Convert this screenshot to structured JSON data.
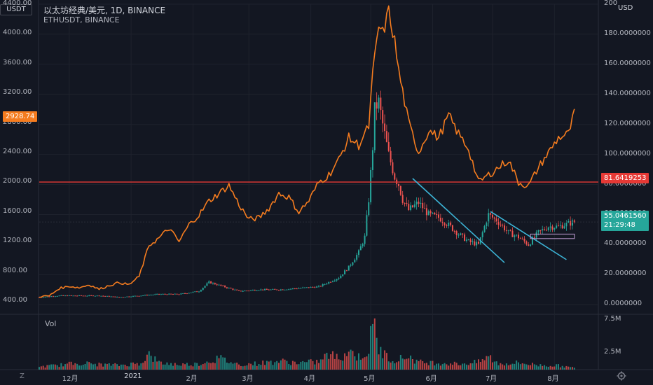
{
  "header": {
    "corner_label": "USDT",
    "title": "以太坊经典/美元, 1D, BINANCE",
    "subtitle": "ETHUSDT, BINANCE",
    "right_currency": "USD",
    "volume_label": "Vol"
  },
  "zoom_label": "Z",
  "settings_icon": "gear-icon",
  "colors": {
    "background": "#131722",
    "eth_line": "#f57c1f",
    "up": "#26a69a",
    "down": "#ef5350",
    "resistance": "#e53935",
    "trendline": "#3cb4d6",
    "current_tag": "#26a69a"
  },
  "chart_data": {
    "type": "line",
    "left_axis": {
      "unit": "USDT",
      "range": [
        250,
        4400
      ],
      "ticks": [
        "4400.00",
        "4000.00",
        "3600.00",
        "3200.00",
        "2800.00",
        "2400.00",
        "2000.00",
        "1600.00",
        "1200.00",
        "800.00",
        "400.00"
      ],
      "tick_values": [
        4400,
        4000,
        3600,
        3200,
        2800,
        2400,
        2000,
        1600,
        1200,
        800,
        400
      ],
      "current_tag": "2928.74",
      "current_value": 2928.74
    },
    "right_axis": {
      "unit": "USD",
      "range": [
        -5,
        200
      ],
      "ticks": [
        "200",
        "180.0000000",
        "160.0000000",
        "140.0000000",
        "120.0000000",
        "100.0000000",
        "80.0000000",
        "60.0000000",
        "40.0000000",
        "20.0000000",
        "0.0000000"
      ],
      "tick_values": [
        200,
        180,
        160,
        140,
        120,
        100,
        80,
        60,
        40,
        20,
        0
      ],
      "level_tag": "81.6419253",
      "level_value": 81.6419253,
      "current_tag": "55.0461560",
      "current_value": 55.046156,
      "countdown": "21:29:48"
    },
    "volume_axis": {
      "ticks": [
        "7.5M",
        "2.5M"
      ],
      "tick_values": [
        7.5,
        2.5
      ],
      "range": [
        0,
        8
      ]
    },
    "x_axis": {
      "range": [
        0,
        280
      ],
      "labels": [
        "12月",
        "2021",
        "2月",
        "3月",
        "4月",
        "5月",
        "6月",
        "7月",
        "8月"
      ],
      "label_days": [
        15,
        46,
        77,
        105,
        136,
        166,
        197,
        227,
        258
      ]
    },
    "series": [
      {
        "name": "ETHUSDT, BINANCE",
        "axis": "left",
        "style": "line",
        "x": [
          0,
          5,
          10,
          15,
          20,
          25,
          30,
          35,
          40,
          45,
          50,
          55,
          60,
          65,
          70,
          75,
          80,
          85,
          90,
          95,
          100,
          105,
          110,
          115,
          120,
          125,
          130,
          135,
          140,
          145,
          150,
          155,
          160,
          165,
          167,
          170,
          172,
          175,
          178,
          180,
          185,
          190,
          195,
          200,
          205,
          210,
          215,
          220,
          225,
          230,
          235,
          240,
          245,
          250,
          255,
          260,
          265,
          268
        ],
        "y": [
          460,
          470,
          570,
          600,
          580,
          620,
          560,
          610,
          650,
          620,
          730,
          1150,
          1250,
          1380,
          1200,
          1430,
          1560,
          1750,
          1850,
          1960,
          1700,
          1500,
          1520,
          1650,
          1850,
          1800,
          1600,
          1750,
          2000,
          2100,
          2300,
          2600,
          2500,
          2750,
          3450,
          4100,
          4000,
          4300,
          3900,
          3500,
          2800,
          2400,
          2700,
          2600,
          2900,
          2650,
          2450,
          2000,
          2100,
          2200,
          2300,
          2000,
          1950,
          2200,
          2400,
          2600,
          2650,
          2930
        ]
      },
      {
        "name": "以太坊经典/美元",
        "axis": "right",
        "style": "candles",
        "x": [
          0,
          10,
          20,
          30,
          40,
          50,
          60,
          70,
          80,
          85,
          90,
          95,
          100,
          110,
          120,
          130,
          140,
          150,
          155,
          160,
          163,
          165,
          167,
          168,
          170,
          172,
          175,
          178,
          180,
          182,
          185,
          190,
          195,
          200,
          205,
          210,
          215,
          220,
          225,
          230,
          235,
          240,
          245,
          250,
          255,
          260,
          265,
          268
        ],
        "y": [
          5,
          6,
          6,
          6,
          5,
          6,
          7,
          7,
          9,
          15,
          13,
          11,
          9,
          10,
          10,
          11,
          12,
          18,
          25,
          35,
          45,
          70,
          105,
          130,
          135,
          120,
          100,
          85,
          80,
          70,
          63,
          68,
          60,
          58,
          53,
          47,
          42,
          40,
          60,
          55,
          48,
          45,
          40,
          48,
          52,
          52,
          54,
          55
        ]
      }
    ],
    "horizontal_level": {
      "axis": "right",
      "value": 81.6419253
    },
    "trendlines": [
      {
        "axis": "right",
        "from": [
          187,
          84
        ],
        "to": [
          233,
          28
        ]
      },
      {
        "axis": "right",
        "from": [
          226,
          62
        ],
        "to": [
          264,
          30
        ]
      }
    ],
    "consolidation_box": {
      "axis": "right",
      "x": [
        246,
        268
      ],
      "y": [
        44,
        47
      ]
    },
    "volume": {
      "x": [
        0,
        10,
        20,
        30,
        40,
        50,
        55,
        60,
        70,
        80,
        90,
        100,
        110,
        120,
        130,
        140,
        145,
        150,
        155,
        160,
        165,
        166,
        168,
        170,
        175,
        180,
        185,
        190,
        200,
        210,
        220,
        225,
        230,
        240,
        250,
        260,
        268
      ],
      "values": [
        0.5,
        0.8,
        1.2,
        0.9,
        0.8,
        1.1,
        2.6,
        1.2,
        0.9,
        1.0,
        2.0,
        0.9,
        1.1,
        1.5,
        1.2,
        1.4,
        2.7,
        2.0,
        3.4,
        2.2,
        3.4,
        5.6,
        7.8,
        3.6,
        2.0,
        1.8,
        2.4,
        1.3,
        1.2,
        1.0,
        1.3,
        2.3,
        1.0,
        1.2,
        0.8,
        0.7,
        0.3
      ]
    }
  }
}
